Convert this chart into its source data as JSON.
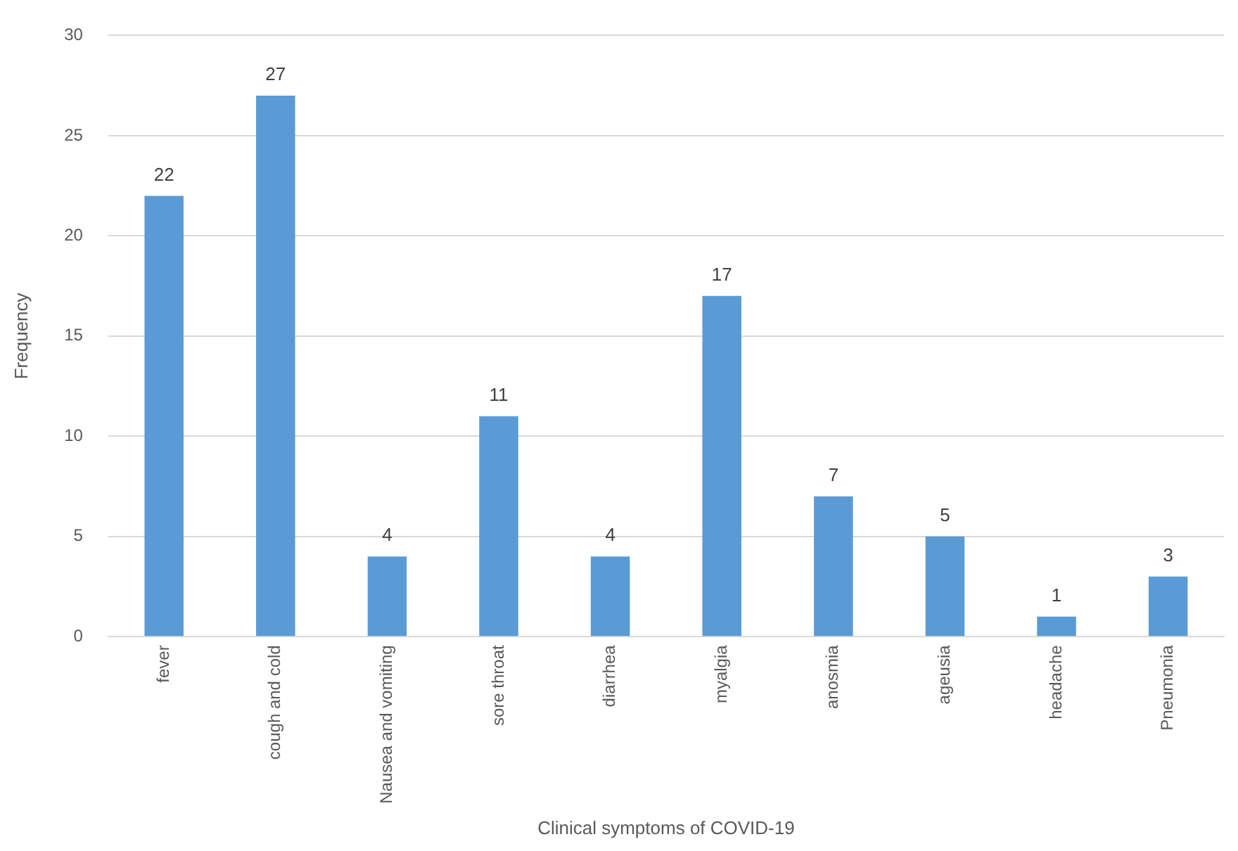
{
  "chart_data": {
    "type": "bar",
    "xlabel": "Clinical symptoms of COVID-19",
    "ylabel": "Frequency",
    "categories": [
      "fever",
      "cough and cold",
      "Nausea and vomiting",
      "sore throat",
      "diarrhea",
      "myalgia",
      "anosmia",
      "ageusia",
      "headache",
      "Pneumonia"
    ],
    "values": [
      22,
      27,
      4,
      11,
      4,
      17,
      7,
      5,
      1,
      3
    ],
    "color": "#5b9bd5",
    "ylim": [
      0,
      30
    ],
    "yticks": [
      0,
      5,
      10,
      15,
      20,
      25,
      30
    ],
    "grid": "y",
    "data_labels": true
  }
}
